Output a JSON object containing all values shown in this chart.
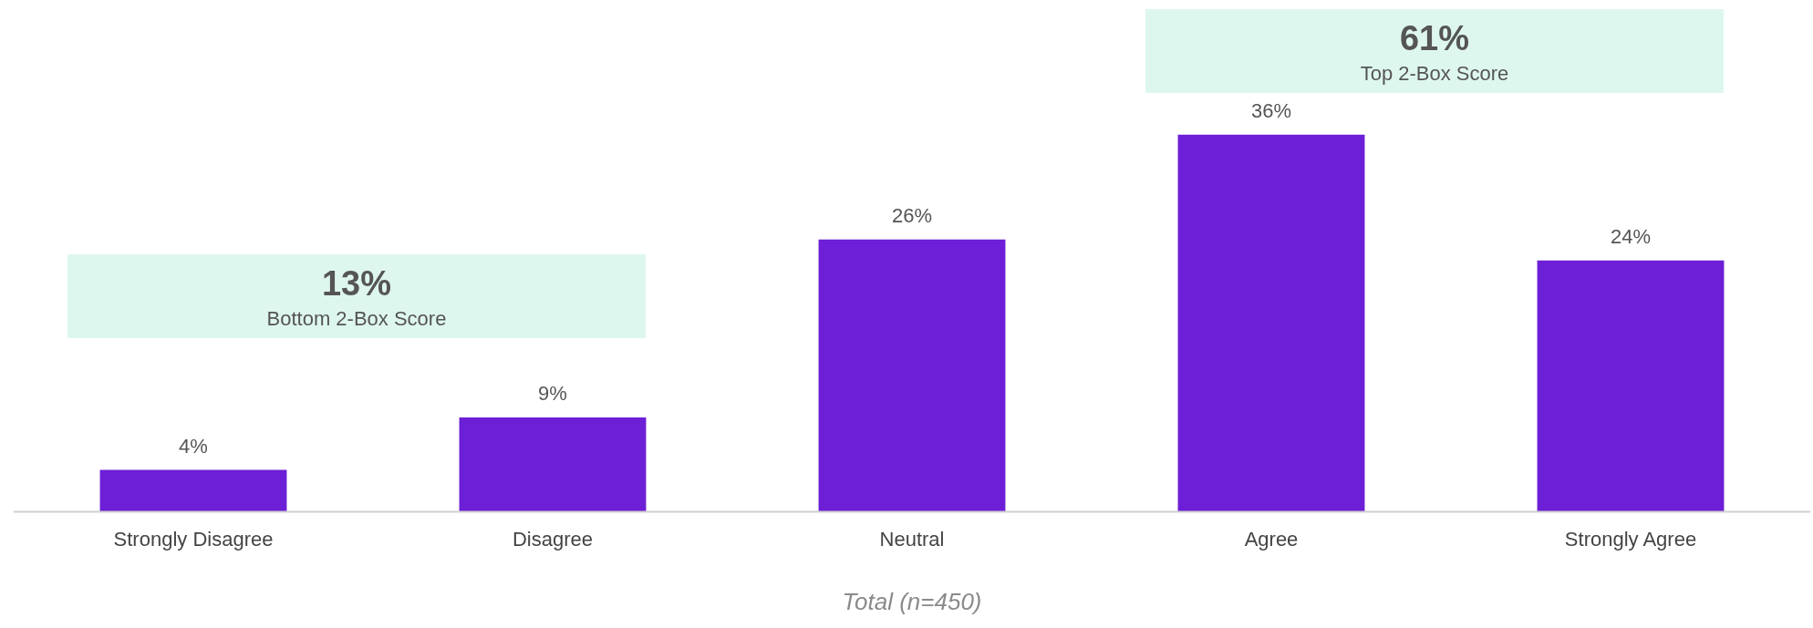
{
  "chart_data": {
    "type": "bar",
    "categories": [
      "Strongly Disagree",
      "Disagree",
      "Neutral",
      "Agree",
      "Strongly Agree"
    ],
    "values": [
      4,
      9,
      26,
      36,
      24
    ],
    "color": "#6c1fd6",
    "value_labels": [
      "4%",
      "9%",
      "26%",
      "36%",
      "24%"
    ],
    "legend": false,
    "grid": false,
    "xlabel": "Total (n=450)",
    "annotations": [
      "13%",
      "Bottom 2-Box Score",
      "61%",
      "Top 2-Box Score"
    ]
  }
}
